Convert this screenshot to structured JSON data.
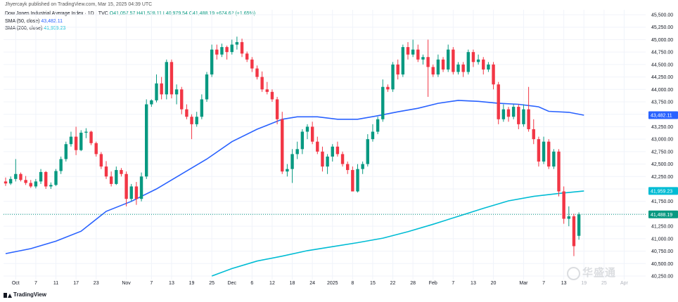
{
  "header": {
    "publisher": "Jhyercayk published on TradingView.com, Mar 15, 2025 04:39 UTC",
    "title": "Dow Jones Industrial Average Index · 1D · TVC",
    "ohlc": "O41,057.57 H41,528.11 L40,979.54 C41,488.19 +674.62 (+1.65%)",
    "sma50_label": "SMA (50, close)",
    "sma50_value": "43,482.11",
    "sma200_label": "SMA (200, close)",
    "sma200_value": "41,959.23"
  },
  "brand": "TradingView",
  "watermark": "华盛通",
  "colors": {
    "up": "#089981",
    "down": "#f23645",
    "sma50": "#2962ff",
    "sma200": "#00bcd4",
    "grid": "#f0f3fa",
    "axis_text": "#131722"
  },
  "chart_data": {
    "type": "candlestick",
    "ylim": [
      40250,
      45500
    ],
    "y_ticks": [
      40250,
      40500,
      40750,
      41000,
      41250,
      41500,
      41750,
      42000,
      42250,
      42500,
      42750,
      43000,
      43250,
      43500,
      43750,
      44000,
      44250,
      44500,
      44750,
      45000,
      45250,
      45500
    ],
    "y_tick_labels": [
      "40,250.00",
      "40,500.00",
      "40,750.00",
      "41,000.00",
      "41,250.00",
      "41,500.00",
      "41,750.00",
      "42,000.00",
      "42,250.00",
      "42,500.00",
      "42,750.00",
      "43,000.00",
      "43,250.00",
      "43,500.00",
      "43,750.00",
      "44,000.00",
      "44,250.00",
      "44,500.00",
      "44,750.00",
      "45,000.00",
      "45,250.00",
      "45,500.00"
    ],
    "x_ticks": [
      {
        "label": "Oct",
        "index": 2
      },
      {
        "label": "7",
        "index": 6
      },
      {
        "label": "11",
        "index": 10
      },
      {
        "label": "17",
        "index": 14
      },
      {
        "label": "23",
        "index": 18
      },
      {
        "label": "Nov",
        "index": 24
      },
      {
        "label": "7",
        "index": 29
      },
      {
        "label": "13",
        "index": 33
      },
      {
        "label": "19",
        "index": 37
      },
      {
        "label": "25",
        "index": 41
      },
      {
        "label": "Dec",
        "index": 45
      },
      {
        "label": "6",
        "index": 49
      },
      {
        "label": "12",
        "index": 53
      },
      {
        "label": "18",
        "index": 57
      },
      {
        "label": "24",
        "index": 61
      },
      {
        "label": "2025",
        "index": 65
      },
      {
        "label": "8",
        "index": 69
      },
      {
        "label": "15",
        "index": 73
      },
      {
        "label": "22",
        "index": 77
      },
      {
        "label": "28",
        "index": 81
      },
      {
        "label": "Feb",
        "index": 85
      },
      {
        "label": "7",
        "index": 89
      },
      {
        "label": "13",
        "index": 93
      },
      {
        "label": "20",
        "index": 97
      },
      {
        "label": "Mar",
        "index": 103
      },
      {
        "label": "7",
        "index": 107
      },
      {
        "label": "13",
        "index": 111
      },
      {
        "label": "19",
        "index": 115
      },
      {
        "label": "25",
        "index": 119
      },
      {
        "label": "Apr",
        "index": 123
      }
    ],
    "x_tick_faded_from": 112,
    "last_price": 41488.19,
    "last_price_label": "41,488.19",
    "candles": [
      {
        "o": 42150,
        "h": 42230,
        "l": 42060,
        "c": 42110
      },
      {
        "o": 42110,
        "h": 42250,
        "l": 42080,
        "c": 42200
      },
      {
        "o": 42200,
        "h": 42600,
        "l": 42150,
        "c": 42300
      },
      {
        "o": 42300,
        "h": 42330,
        "l": 42150,
        "c": 42180
      },
      {
        "o": 42180,
        "h": 42260,
        "l": 42080,
        "c": 42120
      },
      {
        "o": 42120,
        "h": 42180,
        "l": 42020,
        "c": 42050
      },
      {
        "o": 42050,
        "h": 42200,
        "l": 42010,
        "c": 42150
      },
      {
        "o": 42150,
        "h": 42400,
        "l": 42100,
        "c": 42340
      },
      {
        "o": 42340,
        "h": 42360,
        "l": 42000,
        "c": 42050
      },
      {
        "o": 42050,
        "h": 42130,
        "l": 42000,
        "c": 42080
      },
      {
        "o": 42080,
        "h": 42400,
        "l": 42060,
        "c": 42360
      },
      {
        "o": 42360,
        "h": 42650,
        "l": 42300,
        "c": 42600
      },
      {
        "o": 42600,
        "h": 42950,
        "l": 42550,
        "c": 42900
      },
      {
        "o": 42900,
        "h": 43150,
        "l": 42850,
        "c": 43050
      },
      {
        "o": 43050,
        "h": 43250,
        "l": 42680,
        "c": 42780
      },
      {
        "o": 42780,
        "h": 43180,
        "l": 42760,
        "c": 43130
      },
      {
        "o": 43130,
        "h": 43220,
        "l": 43020,
        "c": 43150
      },
      {
        "o": 43150,
        "h": 43170,
        "l": 42880,
        "c": 42920
      },
      {
        "o": 42920,
        "h": 42950,
        "l": 42650,
        "c": 42700
      },
      {
        "o": 42700,
        "h": 42740,
        "l": 42400,
        "c": 42450
      },
      {
        "o": 42450,
        "h": 42560,
        "l": 42200,
        "c": 42250
      },
      {
        "o": 42250,
        "h": 42350,
        "l": 42050,
        "c": 42100
      },
      {
        "o": 42100,
        "h": 42450,
        "l": 42080,
        "c": 42380
      },
      {
        "o": 42380,
        "h": 42420,
        "l": 42250,
        "c": 42300
      },
      {
        "o": 42300,
        "h": 42350,
        "l": 41650,
        "c": 41800
      },
      {
        "o": 41800,
        "h": 42100,
        "l": 41750,
        "c": 42050
      },
      {
        "o": 42050,
        "h": 42140,
        "l": 41680,
        "c": 41800
      },
      {
        "o": 41800,
        "h": 42330,
        "l": 41750,
        "c": 42250
      },
      {
        "o": 42250,
        "h": 43800,
        "l": 42200,
        "c": 43700
      },
      {
        "o": 43700,
        "h": 43800,
        "l": 43650,
        "c": 43780
      },
      {
        "o": 43780,
        "h": 44300,
        "l": 43740,
        "c": 44120
      },
      {
        "o": 44120,
        "h": 44250,
        "l": 43800,
        "c": 43900
      },
      {
        "o": 43900,
        "h": 44600,
        "l": 43800,
        "c": 44550
      },
      {
        "o": 44550,
        "h": 44600,
        "l": 43820,
        "c": 43900
      },
      {
        "o": 43900,
        "h": 44100,
        "l": 43700,
        "c": 44000
      },
      {
        "o": 44000,
        "h": 44050,
        "l": 43500,
        "c": 43600
      },
      {
        "o": 43600,
        "h": 43700,
        "l": 43400,
        "c": 43450
      },
      {
        "o": 43450,
        "h": 43500,
        "l": 43000,
        "c": 43300
      },
      {
        "o": 43300,
        "h": 43550,
        "l": 43250,
        "c": 43450
      },
      {
        "o": 43450,
        "h": 43900,
        "l": 43400,
        "c": 43800
      },
      {
        "o": 43800,
        "h": 44350,
        "l": 43750,
        "c": 44300
      },
      {
        "o": 44300,
        "h": 44900,
        "l": 44250,
        "c": 44800
      },
      {
        "o": 44800,
        "h": 44900,
        "l": 44600,
        "c": 44700
      },
      {
        "o": 44700,
        "h": 44920,
        "l": 44650,
        "c": 44850
      },
      {
        "o": 44850,
        "h": 44880,
        "l": 44600,
        "c": 44750
      },
      {
        "o": 44750,
        "h": 45000,
        "l": 44700,
        "c": 44900
      },
      {
        "o": 44900,
        "h": 45060,
        "l": 44800,
        "c": 44950
      },
      {
        "o": 44950,
        "h": 45020,
        "l": 44650,
        "c": 44720
      },
      {
        "o": 44720,
        "h": 44760,
        "l": 44550,
        "c": 44600
      },
      {
        "o": 44600,
        "h": 44650,
        "l": 44350,
        "c": 44420
      },
      {
        "o": 44420,
        "h": 44480,
        "l": 44200,
        "c": 44250
      },
      {
        "o": 44250,
        "h": 44360,
        "l": 43950,
        "c": 44000
      },
      {
        "o": 44000,
        "h": 44150,
        "l": 43900,
        "c": 43950
      },
      {
        "o": 43950,
        "h": 44000,
        "l": 43750,
        "c": 43800
      },
      {
        "o": 43800,
        "h": 43850,
        "l": 43300,
        "c": 43400
      },
      {
        "o": 43400,
        "h": 43550,
        "l": 42300,
        "c": 42350
      },
      {
        "o": 42350,
        "h": 42500,
        "l": 42250,
        "c": 42400
      },
      {
        "o": 42400,
        "h": 42800,
        "l": 42120,
        "c": 42700
      },
      {
        "o": 42700,
        "h": 42950,
        "l": 42600,
        "c": 42800
      },
      {
        "o": 42800,
        "h": 43200,
        "l": 42700,
        "c": 43150
      },
      {
        "o": 43150,
        "h": 43300,
        "l": 43000,
        "c": 43250
      },
      {
        "o": 43250,
        "h": 43350,
        "l": 42900,
        "c": 42950
      },
      {
        "o": 42950,
        "h": 43050,
        "l": 42700,
        "c": 42750
      },
      {
        "o": 42750,
        "h": 42850,
        "l": 42350,
        "c": 42450
      },
      {
        "o": 42450,
        "h": 42700,
        "l": 42300,
        "c": 42650
      },
      {
        "o": 42650,
        "h": 42900,
        "l": 42550,
        "c": 42850
      },
      {
        "o": 42850,
        "h": 42950,
        "l": 42650,
        "c": 42700
      },
      {
        "o": 42700,
        "h": 42750,
        "l": 42450,
        "c": 42500
      },
      {
        "o": 42500,
        "h": 42550,
        "l": 42300,
        "c": 42380
      },
      {
        "o": 42380,
        "h": 42450,
        "l": 41950,
        "c": 41950
      },
      {
        "o": 41950,
        "h": 42500,
        "l": 41930,
        "c": 42400
      },
      {
        "o": 42400,
        "h": 42550,
        "l": 42300,
        "c": 42500
      },
      {
        "o": 42500,
        "h": 43100,
        "l": 42450,
        "c": 43000
      },
      {
        "o": 43000,
        "h": 43300,
        "l": 42950,
        "c": 43150
      },
      {
        "o": 43150,
        "h": 43450,
        "l": 43100,
        "c": 43400
      },
      {
        "o": 43400,
        "h": 44200,
        "l": 43350,
        "c": 44050
      },
      {
        "o": 44050,
        "h": 44100,
        "l": 43950,
        "c": 44000
      },
      {
        "o": 44000,
        "h": 44550,
        "l": 43950,
        "c": 44500
      },
      {
        "o": 44500,
        "h": 44600,
        "l": 44200,
        "c": 44300
      },
      {
        "o": 44300,
        "h": 44900,
        "l": 44250,
        "c": 44850
      },
      {
        "o": 44850,
        "h": 44950,
        "l": 44600,
        "c": 44700
      },
      {
        "o": 44700,
        "h": 45000,
        "l": 44650,
        "c": 44800
      },
      {
        "o": 44800,
        "h": 44900,
        "l": 44550,
        "c": 44600
      },
      {
        "o": 44600,
        "h": 44700,
        "l": 44500,
        "c": 44650
      },
      {
        "o": 44650,
        "h": 45000,
        "l": 43850,
        "c": 44450
      },
      {
        "o": 44450,
        "h": 44500,
        "l": 44250,
        "c": 44300
      },
      {
        "o": 44300,
        "h": 44700,
        "l": 44250,
        "c": 44600
      },
      {
        "o": 44600,
        "h": 44650,
        "l": 44350,
        "c": 44400
      },
      {
        "o": 44400,
        "h": 44900,
        "l": 44350,
        "c": 44800
      },
      {
        "o": 44800,
        "h": 44850,
        "l": 44300,
        "c": 44350
      },
      {
        "o": 44350,
        "h": 44550,
        "l": 44300,
        "c": 44500
      },
      {
        "o": 44500,
        "h": 44550,
        "l": 44250,
        "c": 44350
      },
      {
        "o": 44350,
        "h": 44800,
        "l": 44300,
        "c": 44750
      },
      {
        "o": 44750,
        "h": 44800,
        "l": 44450,
        "c": 44550
      },
      {
        "o": 44550,
        "h": 44700,
        "l": 44500,
        "c": 44600
      },
      {
        "o": 44600,
        "h": 44650,
        "l": 44300,
        "c": 44400
      },
      {
        "o": 44400,
        "h": 44550,
        "l": 44350,
        "c": 44500
      },
      {
        "o": 44500,
        "h": 44550,
        "l": 44000,
        "c": 44100
      },
      {
        "o": 44100,
        "h": 44150,
        "l": 43300,
        "c": 43400
      },
      {
        "o": 43400,
        "h": 43700,
        "l": 43350,
        "c": 43600
      },
      {
        "o": 43600,
        "h": 43650,
        "l": 43350,
        "c": 43450
      },
      {
        "o": 43450,
        "h": 43700,
        "l": 43400,
        "c": 43650
      },
      {
        "o": 43650,
        "h": 43700,
        "l": 43200,
        "c": 43300
      },
      {
        "o": 43300,
        "h": 43700,
        "l": 43250,
        "c": 43600
      },
      {
        "o": 43600,
        "h": 44050,
        "l": 43150,
        "c": 43200
      },
      {
        "o": 43200,
        "h": 43400,
        "l": 42900,
        "c": 43000
      },
      {
        "o": 43000,
        "h": 43050,
        "l": 42450,
        "c": 42550
      },
      {
        "o": 42550,
        "h": 43050,
        "l": 42500,
        "c": 42950
      },
      {
        "o": 42950,
        "h": 43000,
        "l": 42400,
        "c": 42450
      },
      {
        "o": 42450,
        "h": 42800,
        "l": 42400,
        "c": 42750
      },
      {
        "o": 42750,
        "h": 42800,
        "l": 41850,
        "c": 41950
      },
      {
        "o": 41950,
        "h": 42050,
        "l": 41300,
        "c": 41400
      },
      {
        "o": 41400,
        "h": 41650,
        "l": 41250,
        "c": 41450
      },
      {
        "o": 41450,
        "h": 41500,
        "l": 40650,
        "c": 40850
      },
      {
        "o": 41057.57,
        "h": 41528.11,
        "l": 40979.54,
        "c": 41488.19
      }
    ],
    "sma50": [
      [
        0,
        40700
      ],
      [
        5,
        40800
      ],
      [
        10,
        40950
      ],
      [
        15,
        41150
      ],
      [
        20,
        41550
      ],
      [
        25,
        41750
      ],
      [
        30,
        42000
      ],
      [
        35,
        42300
      ],
      [
        40,
        42600
      ],
      [
        45,
        42950
      ],
      [
        50,
        43200
      ],
      [
        55,
        43400
      ],
      [
        58,
        43450
      ],
      [
        62,
        43450
      ],
      [
        66,
        43400
      ],
      [
        70,
        43400
      ],
      [
        74,
        43470
      ],
      [
        78,
        43550
      ],
      [
        82,
        43620
      ],
      [
        86,
        43720
      ],
      [
        90,
        43780
      ],
      [
        94,
        43760
      ],
      [
        98,
        43720
      ],
      [
        102,
        43700
      ],
      [
        106,
        43650
      ],
      [
        108,
        43560
      ],
      [
        112,
        43540
      ],
      [
        115,
        43482.11
      ]
    ],
    "sma200": [
      [
        41,
        40250
      ],
      [
        45,
        40400
      ],
      [
        50,
        40550
      ],
      [
        55,
        40650
      ],
      [
        60,
        40760
      ],
      [
        65,
        40840
      ],
      [
        70,
        40920
      ],
      [
        75,
        41010
      ],
      [
        80,
        41140
      ],
      [
        85,
        41290
      ],
      [
        90,
        41450
      ],
      [
        95,
        41610
      ],
      [
        100,
        41760
      ],
      [
        105,
        41850
      ],
      [
        110,
        41910
      ],
      [
        115,
        41959.23
      ]
    ]
  }
}
